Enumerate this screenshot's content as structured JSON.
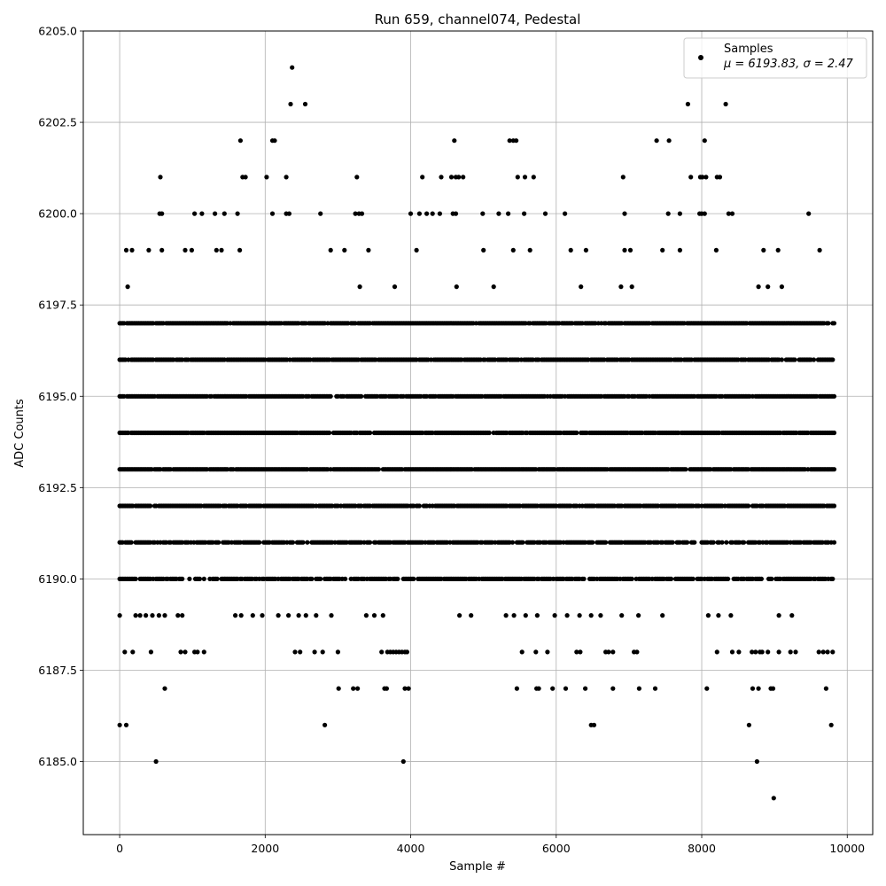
{
  "chart_data": {
    "type": "scatter",
    "title": "Run 659, channel074, Pedestal",
    "xlabel": "Sample #",
    "ylabel": "ADC Counts",
    "xlim": [
      -500,
      10350
    ],
    "ylim": [
      6183,
      6205
    ],
    "xticks": [
      0,
      2000,
      4000,
      6000,
      8000,
      10000
    ],
    "xtick_labels": [
      "0",
      "2000",
      "4000",
      "6000",
      "8000",
      "10000"
    ],
    "yticks": [
      6185.0,
      6187.5,
      6190.0,
      6192.5,
      6195.0,
      6197.5,
      6200.0,
      6202.5,
      6205.0
    ],
    "ytick_labels": [
      "6185.0",
      "6187.5",
      "6190.0",
      "6192.5",
      "6195.0",
      "6197.5",
      "6200.0",
      "6202.5",
      "6205.0"
    ],
    "grid": true,
    "legend_position": "top-right",
    "series": [
      {
        "name": "Samples",
        "stats_label": "μ = 6193.83, σ = 2.47",
        "color": "#000000",
        "x_step": 20,
        "x_start": 0,
        "x_end": 9820,
        "dense_levels": [
          6190,
          6191,
          6192,
          6193,
          6194,
          6195,
          6196,
          6197
        ],
        "sparse_points": [
          [
            0,
            6186
          ],
          [
            90,
            6186
          ],
          [
            500,
            6185
          ],
          [
            3900,
            6185
          ],
          [
            2820,
            6186
          ],
          [
            6480,
            6186
          ],
          [
            6520,
            6186
          ],
          [
            8650,
            6186
          ],
          [
            9780,
            6186
          ],
          [
            8990,
            6184
          ],
          [
            8760,
            6185
          ],
          [
            620,
            6187
          ],
          [
            3010,
            6187
          ],
          [
            3210,
            6187
          ],
          [
            3270,
            6187
          ],
          [
            3640,
            6187
          ],
          [
            3670,
            6187
          ],
          [
            3920,
            6187
          ],
          [
            3970,
            6187
          ],
          [
            5460,
            6187
          ],
          [
            5730,
            6187
          ],
          [
            5760,
            6187
          ],
          [
            5950,
            6187
          ],
          [
            6130,
            6187
          ],
          [
            6400,
            6187
          ],
          [
            6780,
            6187
          ],
          [
            7140,
            6187
          ],
          [
            7360,
            6187
          ],
          [
            8070,
            6187
          ],
          [
            8700,
            6187
          ],
          [
            8780,
            6187
          ],
          [
            8950,
            6187
          ],
          [
            8980,
            6187
          ],
          [
            9710,
            6187
          ],
          [
            70,
            6188
          ],
          [
            180,
            6188
          ],
          [
            430,
            6188
          ],
          [
            840,
            6188
          ],
          [
            900,
            6188
          ],
          [
            1030,
            6188
          ],
          [
            1070,
            6188
          ],
          [
            1160,
            6188
          ],
          [
            2410,
            6188
          ],
          [
            2480,
            6188
          ],
          [
            2680,
            6188
          ],
          [
            2790,
            6188
          ],
          [
            3000,
            6188
          ],
          [
            3600,
            6188
          ],
          [
            3680,
            6188
          ],
          [
            3720,
            6188
          ],
          [
            3760,
            6188
          ],
          [
            3800,
            6188
          ],
          [
            3840,
            6188
          ],
          [
            3880,
            6188
          ],
          [
            3920,
            6188
          ],
          [
            3950,
            6188
          ],
          [
            5530,
            6188
          ],
          [
            5720,
            6188
          ],
          [
            5880,
            6188
          ],
          [
            6280,
            6188
          ],
          [
            6330,
            6188
          ],
          [
            6680,
            6188
          ],
          [
            6720,
            6188
          ],
          [
            6780,
            6188
          ],
          [
            7070,
            6188
          ],
          [
            7110,
            6188
          ],
          [
            8210,
            6188
          ],
          [
            8420,
            6188
          ],
          [
            8510,
            6188
          ],
          [
            8690,
            6188
          ],
          [
            8740,
            6188
          ],
          [
            8800,
            6188
          ],
          [
            8830,
            6188
          ],
          [
            8910,
            6188
          ],
          [
            9060,
            6188
          ],
          [
            9220,
            6188
          ],
          [
            9290,
            6188
          ],
          [
            9610,
            6188
          ],
          [
            9670,
            6188
          ],
          [
            9730,
            6188
          ],
          [
            9800,
            6188
          ],
          [
            0,
            6189
          ],
          [
            220,
            6189
          ],
          [
            280,
            6189
          ],
          [
            360,
            6189
          ],
          [
            450,
            6189
          ],
          [
            540,
            6189
          ],
          [
            620,
            6189
          ],
          [
            800,
            6189
          ],
          [
            860,
            6189
          ],
          [
            1590,
            6189
          ],
          [
            1670,
            6189
          ],
          [
            1830,
            6189
          ],
          [
            1960,
            6189
          ],
          [
            2180,
            6189
          ],
          [
            2320,
            6189
          ],
          [
            2460,
            6189
          ],
          [
            2560,
            6189
          ],
          [
            2700,
            6189
          ],
          [
            2910,
            6189
          ],
          [
            3390,
            6189
          ],
          [
            3500,
            6189
          ],
          [
            3620,
            6189
          ],
          [
            4670,
            6189
          ],
          [
            4830,
            6189
          ],
          [
            5310,
            6189
          ],
          [
            5420,
            6189
          ],
          [
            5580,
            6189
          ],
          [
            5740,
            6189
          ],
          [
            5980,
            6189
          ],
          [
            6150,
            6189
          ],
          [
            6320,
            6189
          ],
          [
            6480,
            6189
          ],
          [
            6610,
            6189
          ],
          [
            6900,
            6189
          ],
          [
            7130,
            6189
          ],
          [
            7460,
            6189
          ],
          [
            8090,
            6189
          ],
          [
            8230,
            6189
          ],
          [
            8400,
            6189
          ],
          [
            9060,
            6189
          ],
          [
            9240,
            6189
          ],
          [
            110,
            6198
          ],
          [
            3300,
            6198
          ],
          [
            3780,
            6198
          ],
          [
            4630,
            6198
          ],
          [
            5140,
            6198
          ],
          [
            6340,
            6198
          ],
          [
            6890,
            6198
          ],
          [
            7040,
            6198
          ],
          [
            8780,
            6198
          ],
          [
            8910,
            6198
          ],
          [
            9100,
            6198
          ],
          [
            90,
            6199
          ],
          [
            170,
            6199
          ],
          [
            400,
            6199
          ],
          [
            580,
            6199
          ],
          [
            900,
            6199
          ],
          [
            990,
            6199
          ],
          [
            1330,
            6199
          ],
          [
            1400,
            6199
          ],
          [
            1650,
            6199
          ],
          [
            2900,
            6199
          ],
          [
            3090,
            6199
          ],
          [
            3420,
            6199
          ],
          [
            4080,
            6199
          ],
          [
            5000,
            6199
          ],
          [
            5410,
            6199
          ],
          [
            5640,
            6199
          ],
          [
            6200,
            6199
          ],
          [
            6410,
            6199
          ],
          [
            6940,
            6199
          ],
          [
            7020,
            6199
          ],
          [
            7460,
            6199
          ],
          [
            7700,
            6199
          ],
          [
            8200,
            6199
          ],
          [
            8850,
            6199
          ],
          [
            9050,
            6199
          ],
          [
            9620,
            6199
          ],
          [
            550,
            6200
          ],
          [
            580,
            6200
          ],
          [
            1030,
            6200
          ],
          [
            1130,
            6200
          ],
          [
            1310,
            6200
          ],
          [
            1440,
            6200
          ],
          [
            1620,
            6200
          ],
          [
            2100,
            6200
          ],
          [
            2290,
            6200
          ],
          [
            2330,
            6200
          ],
          [
            2760,
            6200
          ],
          [
            3240,
            6200
          ],
          [
            3290,
            6200
          ],
          [
            3330,
            6200
          ],
          [
            4000,
            6200
          ],
          [
            4120,
            6200
          ],
          [
            4220,
            6200
          ],
          [
            4300,
            6200
          ],
          [
            4400,
            6200
          ],
          [
            4580,
            6200
          ],
          [
            4620,
            6200
          ],
          [
            4990,
            6200
          ],
          [
            5210,
            6200
          ],
          [
            5340,
            6200
          ],
          [
            5560,
            6200
          ],
          [
            5850,
            6200
          ],
          [
            6120,
            6200
          ],
          [
            6940,
            6200
          ],
          [
            7540,
            6200
          ],
          [
            7700,
            6200
          ],
          [
            7970,
            6200
          ],
          [
            8000,
            6200
          ],
          [
            8040,
            6200
          ],
          [
            8370,
            6200
          ],
          [
            8420,
            6200
          ],
          [
            9470,
            6200
          ],
          [
            560,
            6201
          ],
          [
            1690,
            6201
          ],
          [
            1730,
            6201
          ],
          [
            2020,
            6201
          ],
          [
            2290,
            6201
          ],
          [
            3260,
            6201
          ],
          [
            4160,
            6201
          ],
          [
            4420,
            6201
          ],
          [
            4560,
            6201
          ],
          [
            4620,
            6201
          ],
          [
            4660,
            6201
          ],
          [
            4720,
            6201
          ],
          [
            5470,
            6201
          ],
          [
            5570,
            6201
          ],
          [
            5690,
            6201
          ],
          [
            6920,
            6201
          ],
          [
            7850,
            6201
          ],
          [
            7980,
            6201
          ],
          [
            8010,
            6201
          ],
          [
            8060,
            6201
          ],
          [
            8210,
            6201
          ],
          [
            8250,
            6201
          ],
          [
            1660,
            6202
          ],
          [
            2100,
            6202
          ],
          [
            2130,
            6202
          ],
          [
            4600,
            6202
          ],
          [
            5360,
            6202
          ],
          [
            5410,
            6202
          ],
          [
            5450,
            6202
          ],
          [
            7380,
            6202
          ],
          [
            7550,
            6202
          ],
          [
            8040,
            6202
          ],
          [
            2350,
            6203
          ],
          [
            2550,
            6203
          ],
          [
            7810,
            6203
          ],
          [
            8330,
            6203
          ],
          [
            2370,
            6204
          ]
        ]
      }
    ]
  }
}
